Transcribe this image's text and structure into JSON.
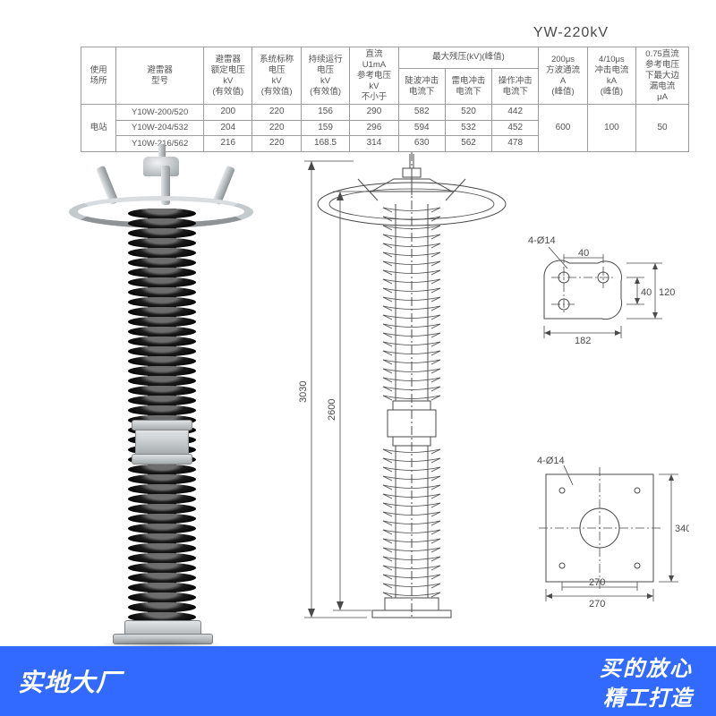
{
  "model_title": "YW-220kV",
  "table": {
    "headers": {
      "use_place": "使用\n场所",
      "model": "避雷器\n型号",
      "rated_voltage": "避雷器\n额定电压\nkV\n(有效值)",
      "sys_nominal": "系统标称\n电压\nkV\n(有效值)",
      "mcov": "持续运行\n电压\nkV\n(有效值)",
      "dc_ref": "直流\nU1mA\n参考电压\nkV\n不小于",
      "max_res_group": "最大残压(kV)(峰值)",
      "steep": "陡波冲击\n电流下",
      "lightning": "雷电冲击\n电流下",
      "switching": "操作冲击\n电流下",
      "sq_wave": "200μs\n方波通流\nA\n(峰值)",
      "impulse": "4/10μs\n冲击电流\nkA\n(峰值)",
      "leak": "0.75直流\n参考电压\n下最大边\n漏电流\nμA"
    },
    "row_label": "电站",
    "rows": [
      {
        "model": "Y10W-200/520",
        "rated": "200",
        "sys": "220",
        "mcov": "156",
        "dcref": "290",
        "steep": "582",
        "light": "520",
        "switch": "442",
        "sq": "600",
        "imp": "100",
        "leak": "50"
      },
      {
        "model": "Y10W-204/532",
        "rated": "204",
        "sys": "220",
        "mcov": "159",
        "dcref": "296",
        "steep": "594",
        "light": "532",
        "switch": "452",
        "sq": "",
        "imp": "",
        "leak": ""
      },
      {
        "model": "Y10W-216/562",
        "rated": "216",
        "sys": "220",
        "mcov": "168.5",
        "dcref": "314",
        "steep": "630",
        "light": "562",
        "switch": "478",
        "sq": "",
        "imp": "",
        "leak": ""
      }
    ]
  },
  "drawing": {
    "overall_height": "3030",
    "inner_height": "2600",
    "top_plate": {
      "hole_callout": "4-Ø14",
      "w": "182",
      "pitch_h": "40",
      "gap": "40",
      "total_h": "120"
    },
    "base_plate": {
      "hole_callout": "4-Ø14",
      "w": "270",
      "pitch": "270",
      "h": "340"
    }
  },
  "banner": {
    "left": "实地大厂",
    "right_line1": "买的放心",
    "right_line2": "精工打造"
  },
  "style": {
    "banner_bg": "#3269ff",
    "text_color": "#4a4a4a",
    "border_color": "#9d9d9d"
  }
}
